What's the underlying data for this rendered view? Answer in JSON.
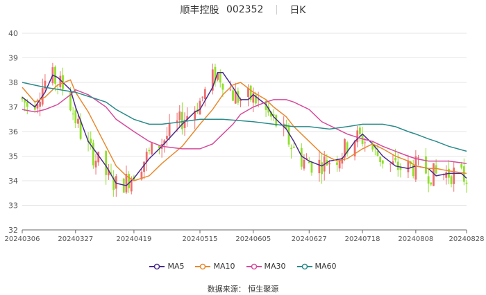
{
  "header": {
    "stock_name": "顺丰控股",
    "stock_code": "002352",
    "period": "日K"
  },
  "source": "数据来源：  恒生聚源",
  "chart_data": {
    "type": "candlestick",
    "title": "顺丰控股 002352",
    "ylim": [
      32,
      40
    ],
    "yticks": [
      32,
      33,
      34,
      35,
      36,
      37,
      38,
      39,
      40
    ],
    "x_start": "20240306",
    "x_end": "20240828",
    "xticks": [
      "20240306",
      "20240327",
      "20240419",
      "20240515",
      "20240605",
      "20240627",
      "20240718",
      "20240808",
      "20240828"
    ],
    "up_color": "#ef6d6d",
    "down_color": "#8fe02a",
    "grid": true,
    "legend_position": "bottom",
    "series": [
      {
        "name": "MA5",
        "color": "#4a2c8c",
        "values": [
          {
            "x": "20240306",
            "y": 37.4
          },
          {
            "x": "20240311",
            "y": 37.0
          },
          {
            "x": "20240315",
            "y": 37.6
          },
          {
            "x": "20240318",
            "y": 38.3
          },
          {
            "x": "20240320",
            "y": 38.2
          },
          {
            "x": "20240325",
            "y": 37.7
          },
          {
            "x": "20240327",
            "y": 37.0
          },
          {
            "x": "20240401",
            "y": 35.6
          },
          {
            "x": "20240408",
            "y": 34.6
          },
          {
            "x": "20240412",
            "y": 33.9
          },
          {
            "x": "20240416",
            "y": 33.8
          },
          {
            "x": "20240419",
            "y": 34.1
          },
          {
            "x": "20240425",
            "y": 34.9
          },
          {
            "x": "20240430",
            "y": 35.4
          },
          {
            "x": "20240508",
            "y": 36.3
          },
          {
            "x": "20240513",
            "y": 36.8
          },
          {
            "x": "20240515",
            "y": 36.9
          },
          {
            "x": "20240520",
            "y": 37.8
          },
          {
            "x": "20240522",
            "y": 38.4
          },
          {
            "x": "20240524",
            "y": 38.4
          },
          {
            "x": "20240528",
            "y": 37.8
          },
          {
            "x": "20240531",
            "y": 37.3
          },
          {
            "x": "20240603",
            "y": 37.3
          },
          {
            "x": "20240605",
            "y": 37.5
          },
          {
            "x": "20240610",
            "y": 37.1
          },
          {
            "x": "20240613",
            "y": 36.6
          },
          {
            "x": "20240618",
            "y": 36.1
          },
          {
            "x": "20240621",
            "y": 35.6
          },
          {
            "x": "20240624",
            "y": 35.0
          },
          {
            "x": "20240627",
            "y": 34.8
          },
          {
            "x": "20240702",
            "y": 34.6
          },
          {
            "x": "20240705",
            "y": 34.8
          },
          {
            "x": "20240710",
            "y": 34.9
          },
          {
            "x": "20240715",
            "y": 35.6
          },
          {
            "x": "20240718",
            "y": 35.9
          },
          {
            "x": "20240722",
            "y": 35.5
          },
          {
            "x": "20240726",
            "y": 35.0
          },
          {
            "x": "20240731",
            "y": 34.6
          },
          {
            "x": "20240805",
            "y": 34.5
          },
          {
            "x": "20240808",
            "y": 34.6
          },
          {
            "x": "20240813",
            "y": 34.5
          },
          {
            "x": "20240816",
            "y": 34.2
          },
          {
            "x": "20240821",
            "y": 34.3
          },
          {
            "x": "20240826",
            "y": 34.3
          },
          {
            "x": "20240828",
            "y": 34.1
          }
        ]
      },
      {
        "name": "MA10",
        "color": "#e8892e",
        "values": [
          {
            "x": "20240306",
            "y": 37.8
          },
          {
            "x": "20240311",
            "y": 37.2
          },
          {
            "x": "20240315",
            "y": 37.4
          },
          {
            "x": "20240320",
            "y": 37.9
          },
          {
            "x": "20240325",
            "y": 38.1
          },
          {
            "x": "20240327",
            "y": 37.6
          },
          {
            "x": "20240401",
            "y": 36.8
          },
          {
            "x": "20240408",
            "y": 35.4
          },
          {
            "x": "20240412",
            "y": 34.6
          },
          {
            "x": "20240416",
            "y": 34.2
          },
          {
            "x": "20240419",
            "y": 34.0
          },
          {
            "x": "20240425",
            "y": 34.2
          },
          {
            "x": "20240430",
            "y": 34.7
          },
          {
            "x": "20240508",
            "y": 35.4
          },
          {
            "x": "20240515",
            "y": 36.3
          },
          {
            "x": "20240520",
            "y": 36.9
          },
          {
            "x": "20240524",
            "y": 37.5
          },
          {
            "x": "20240528",
            "y": 37.9
          },
          {
            "x": "20240531",
            "y": 38.0
          },
          {
            "x": "20240605",
            "y": 37.6
          },
          {
            "x": "20240610",
            "y": 37.3
          },
          {
            "x": "20240613",
            "y": 37.0
          },
          {
            "x": "20240618",
            "y": 36.6
          },
          {
            "x": "20240621",
            "y": 36.2
          },
          {
            "x": "20240627",
            "y": 35.6
          },
          {
            "x": "20240702",
            "y": 35.1
          },
          {
            "x": "20240708",
            "y": 34.8
          },
          {
            "x": "20240712",
            "y": 34.9
          },
          {
            "x": "20240718",
            "y": 35.3
          },
          {
            "x": "20240722",
            "y": 35.5
          },
          {
            "x": "20240726",
            "y": 35.3
          },
          {
            "x": "20240731",
            "y": 35.0
          },
          {
            "x": "20240805",
            "y": 34.8
          },
          {
            "x": "20240808",
            "y": 34.6
          },
          {
            "x": "20240813",
            "y": 34.5
          },
          {
            "x": "20240816",
            "y": 34.5
          },
          {
            "x": "20240821",
            "y": 34.4
          },
          {
            "x": "20240828",
            "y": 34.3
          }
        ]
      },
      {
        "name": "MA30",
        "color": "#d64a9c",
        "values": [
          {
            "x": "20240306",
            "y": 36.9
          },
          {
            "x": "20240311",
            "y": 36.8
          },
          {
            "x": "20240315",
            "y": 36.9
          },
          {
            "x": "20240320",
            "y": 37.1
          },
          {
            "x": "20240325",
            "y": 37.5
          },
          {
            "x": "20240327",
            "y": 37.7
          },
          {
            "x": "20240401",
            "y": 37.5
          },
          {
            "x": "20240408",
            "y": 37.0
          },
          {
            "x": "20240412",
            "y": 36.5
          },
          {
            "x": "20240419",
            "y": 36.0
          },
          {
            "x": "20240425",
            "y": 35.6
          },
          {
            "x": "20240430",
            "y": 35.4
          },
          {
            "x": "20240508",
            "y": 35.3
          },
          {
            "x": "20240515",
            "y": 35.3
          },
          {
            "x": "20240520",
            "y": 35.5
          },
          {
            "x": "20240524",
            "y": 35.9
          },
          {
            "x": "20240528",
            "y": 36.3
          },
          {
            "x": "20240531",
            "y": 36.7
          },
          {
            "x": "20240605",
            "y": 37.0
          },
          {
            "x": "20240610",
            "y": 37.2
          },
          {
            "x": "20240613",
            "y": 37.3
          },
          {
            "x": "20240618",
            "y": 37.3
          },
          {
            "x": "20240621",
            "y": 37.2
          },
          {
            "x": "20240627",
            "y": 36.9
          },
          {
            "x": "20240702",
            "y": 36.4
          },
          {
            "x": "20240708",
            "y": 36.1
          },
          {
            "x": "20240712",
            "y": 35.9
          },
          {
            "x": "20240718",
            "y": 35.7
          },
          {
            "x": "20240722",
            "y": 35.6
          },
          {
            "x": "20240726",
            "y": 35.4
          },
          {
            "x": "20240731",
            "y": 35.2
          },
          {
            "x": "20240805",
            "y": 35.0
          },
          {
            "x": "20240808",
            "y": 34.9
          },
          {
            "x": "20240813",
            "y": 34.8
          },
          {
            "x": "20240816",
            "y": 34.8
          },
          {
            "x": "20240821",
            "y": 34.8
          },
          {
            "x": "20240828",
            "y": 34.7
          }
        ]
      },
      {
        "name": "MA60",
        "color": "#2a8a8a",
        "values": [
          {
            "x": "20240306",
            "y": 38.0
          },
          {
            "x": "20240315",
            "y": 37.8
          },
          {
            "x": "20240327",
            "y": 37.6
          },
          {
            "x": "20240408",
            "y": 37.2
          },
          {
            "x": "20240412",
            "y": 36.9
          },
          {
            "x": "20240419",
            "y": 36.5
          },
          {
            "x": "20240425",
            "y": 36.3
          },
          {
            "x": "20240430",
            "y": 36.3
          },
          {
            "x": "20240508",
            "y": 36.4
          },
          {
            "x": "20240515",
            "y": 36.5
          },
          {
            "x": "20240524",
            "y": 36.5
          },
          {
            "x": "20240605",
            "y": 36.4
          },
          {
            "x": "20240613",
            "y": 36.3
          },
          {
            "x": "20240621",
            "y": 36.2
          },
          {
            "x": "20240627",
            "y": 36.2
          },
          {
            "x": "20240705",
            "y": 36.1
          },
          {
            "x": "20240712",
            "y": 36.2
          },
          {
            "x": "20240718",
            "y": 36.3
          },
          {
            "x": "20240726",
            "y": 36.3
          },
          {
            "x": "20240731",
            "y": 36.2
          },
          {
            "x": "20240805",
            "y": 36.0
          },
          {
            "x": "20240808",
            "y": 35.9
          },
          {
            "x": "20240813",
            "y": 35.7
          },
          {
            "x": "20240816",
            "y": 35.6
          },
          {
            "x": "20240821",
            "y": 35.4
          },
          {
            "x": "20240828",
            "y": 35.2
          }
        ]
      }
    ]
  }
}
